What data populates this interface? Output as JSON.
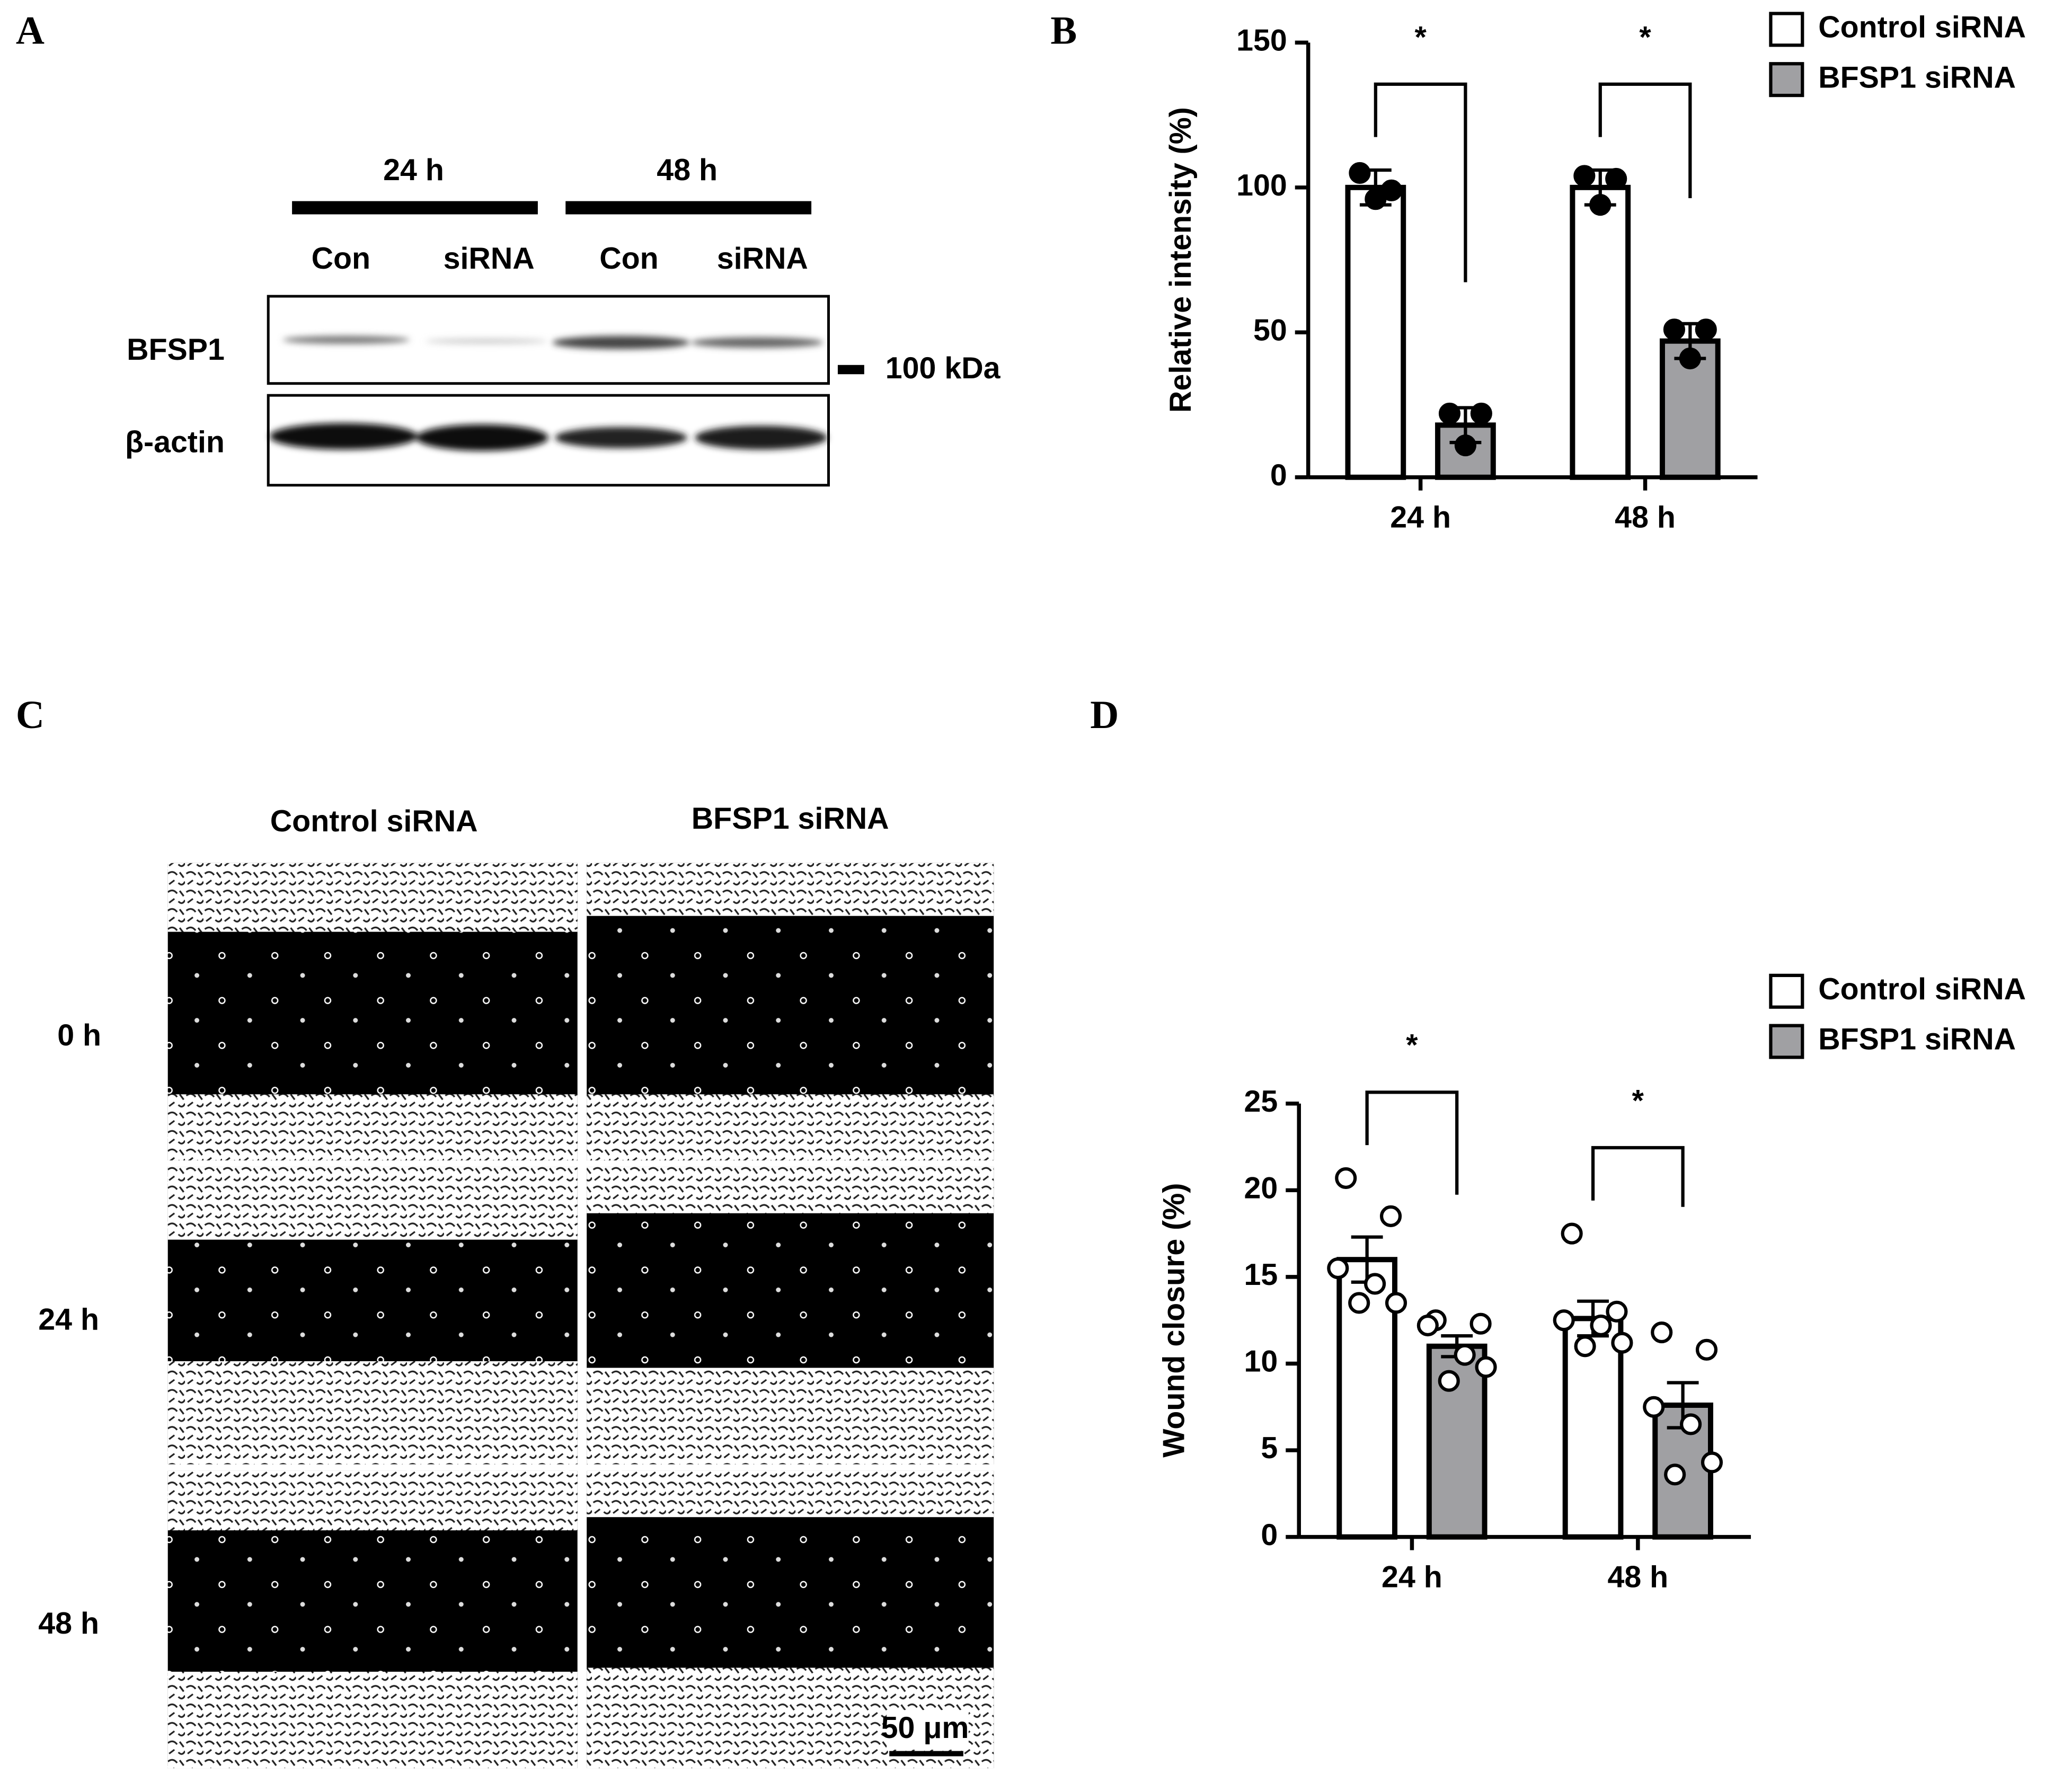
{
  "panel_a": {
    "label": "A",
    "time_labels": [
      "24 h",
      "48 h"
    ],
    "lane_labels": [
      "Con",
      "siRNA",
      "Con",
      "siRNA"
    ],
    "row_labels": [
      "BFSP1",
      "β-actin"
    ],
    "marker": "100 kDa"
  },
  "panel_c": {
    "label": "C",
    "column_labels": [
      "Control siRNA",
      "BFSP1 siRNA"
    ],
    "row_labels": [
      "0 h",
      "24 h",
      "48 h"
    ],
    "scale_bar": "50 μm"
  },
  "chart_data": [
    {
      "type": "bar",
      "panel_label": "B",
      "ylabel": "Relative intensity (%)",
      "categories": [
        "24 h",
        "48 h"
      ],
      "series": [
        {
          "name": "Control siRNA",
          "color": "#ffffff",
          "values": [
            100,
            100
          ],
          "errors": [
            6,
            6
          ],
          "points": [
            [
              105,
              99,
              96
            ],
            [
              104,
              103,
              94
            ]
          ]
        },
        {
          "name": "BFSP1 siRNA",
          "color": "#a0a0a3",
          "values": [
            18,
            47
          ],
          "errors": [
            6,
            6
          ],
          "points": [
            [
              22,
              22,
              11
            ],
            [
              51,
              51,
              41
            ]
          ]
        }
      ],
      "ylim": [
        0,
        150
      ],
      "yticks": [
        0,
        50,
        100,
        150
      ],
      "significance": [
        "*",
        "*"
      ],
      "point_style": "filled"
    },
    {
      "type": "bar",
      "panel_label": "D",
      "ylabel": "Wound closure (%)",
      "categories": [
        "24 h",
        "48 h"
      ],
      "series": [
        {
          "name": "Control siRNA",
          "color": "#ffffff",
          "values": [
            16,
            12.6
          ],
          "errors": [
            1.3,
            1.0
          ],
          "points": [
            [
              20.7,
              18.5,
              15.5,
              14.6,
              13.5,
              13.5
            ],
            [
              17.5,
              13.0,
              12.5,
              12.2,
              11.2,
              11.0
            ]
          ]
        },
        {
          "name": "BFSP1 siRNA",
          "color": "#a0a0a3",
          "values": [
            11.0,
            7.6
          ],
          "errors": [
            0.6,
            1.3
          ],
          "points": [
            [
              12.5,
              12.3,
              12.2,
              10.5,
              9.8,
              9.0
            ],
            [
              11.8,
              10.8,
              7.5,
              6.5,
              4.3,
              3.6
            ]
          ]
        }
      ],
      "ylim": [
        0,
        25
      ],
      "yticks": [
        0,
        5,
        10,
        15,
        20,
        25
      ],
      "significance": [
        "*",
        "*"
      ],
      "point_style": "open"
    }
  ]
}
